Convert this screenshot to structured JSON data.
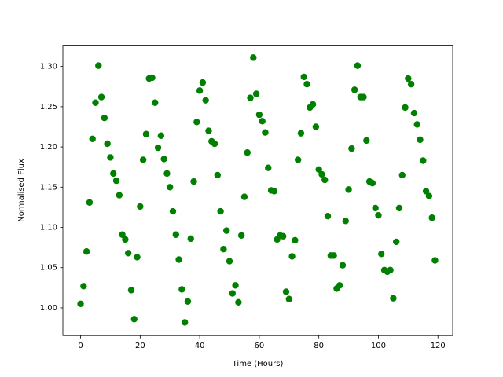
{
  "chart_data": {
    "type": "scatter",
    "x_label": "Time (Hours)",
    "y_label": "Normalised Flux",
    "color": "#008000",
    "x": [
      0,
      1,
      2,
      3,
      4,
      5,
      6,
      7,
      8,
      9,
      10,
      11,
      12,
      13,
      14,
      15,
      16,
      17,
      18,
      19,
      20,
      21,
      22,
      23,
      24,
      25,
      26,
      27,
      28,
      29,
      30,
      31,
      32,
      33,
      34,
      35,
      36,
      37,
      38,
      39,
      40,
      41,
      42,
      43,
      44,
      45,
      46,
      47,
      48,
      49,
      50,
      51,
      52,
      53,
      54,
      55,
      56,
      57,
      58,
      59,
      60,
      61,
      62,
      63,
      64,
      65,
      66,
      67,
      68,
      69,
      70,
      71,
      72,
      73,
      74,
      75,
      76,
      77,
      78,
      79,
      80,
      81,
      82,
      83,
      84,
      85,
      86,
      87,
      88,
      89,
      90,
      91,
      92,
      93,
      94,
      95,
      96,
      97,
      98,
      99,
      100,
      101,
      102,
      103,
      104,
      105,
      106,
      107,
      108,
      109,
      110,
      111,
      112,
      113,
      114,
      115,
      116,
      117,
      118,
      119
    ],
    "values": [
      1.005,
      1.027,
      1.07,
      1.131,
      1.21,
      1.255,
      1.301,
      1.262,
      1.236,
      1.204,
      1.187,
      1.167,
      1.158,
      1.14,
      1.091,
      1.085,
      1.068,
      1.022,
      0.986,
      1.063,
      1.126,
      1.184,
      1.216,
      1.285,
      1.286,
      1.255,
      1.199,
      1.214,
      1.185,
      1.167,
      1.15,
      1.12,
      1.091,
      1.06,
      1.023,
      0.982,
      1.008,
      1.086,
      1.157,
      1.231,
      1.27,
      1.28,
      1.258,
      1.22,
      1.207,
      1.204,
      1.165,
      1.12,
      1.073,
      1.096,
      1.058,
      1.018,
      1.028,
      1.007,
      1.09,
      1.138,
      1.193,
      1.261,
      1.311,
      1.266,
      1.24,
      1.232,
      1.218,
      1.174,
      1.146,
      1.145,
      1.085,
      1.09,
      1.089,
      1.02,
      1.011,
      1.064,
      1.084,
      1.184,
      1.217,
      1.287,
      1.278,
      1.249,
      1.253,
      1.225,
      1.172,
      1.166,
      1.159,
      1.114,
      1.065,
      1.065,
      1.024,
      1.028,
      1.053,
      1.108,
      1.147,
      1.198,
      1.271,
      1.301,
      1.262,
      1.262,
      1.208,
      1.157,
      1.155,
      1.124,
      1.115,
      1.067,
      1.047,
      1.045,
      1.047,
      1.012,
      1.082,
      1.124,
      1.165,
      1.249,
      1.285,
      1.278,
      1.242,
      1.228,
      1.209,
      1.183,
      1.145,
      1.139,
      1.112,
      1.059
    ],
    "xlim": [
      -5.95,
      124.95
    ],
    "ylim": [
      0.9656,
      1.3264
    ],
    "xticks": [
      0,
      20,
      40,
      60,
      80,
      100,
      120
    ],
    "yticks": [
      {
        "value": 1.0,
        "label": "1.00"
      },
      {
        "value": 1.05,
        "label": "1.05"
      },
      {
        "value": 1.1,
        "label": "1.10"
      },
      {
        "value": 1.15,
        "label": "1.15"
      },
      {
        "value": 1.2,
        "label": "1.20"
      },
      {
        "value": 1.25,
        "label": "1.25"
      },
      {
        "value": 1.3,
        "label": "1.30"
      }
    ]
  }
}
